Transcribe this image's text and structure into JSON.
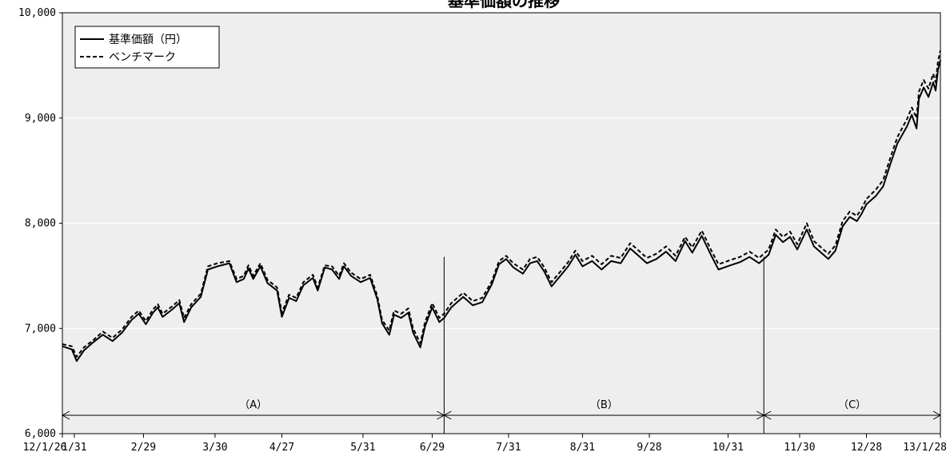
{
  "chart_data": {
    "type": "line",
    "title": "基準価額の推移",
    "xlabel": "",
    "ylabel": "",
    "ylim": [
      6000,
      10000
    ],
    "yticks": [
      6000,
      7000,
      8000,
      9000,
      10000
    ],
    "ytick_labels": [
      "6,000",
      "7,000",
      "8,000",
      "9,000",
      "10,000"
    ],
    "grid": true,
    "legend_placement": "top-left",
    "xlim": [
      "2012-01-26",
      "2013-01-28"
    ],
    "xticks": [
      {
        "date": "2012-01-26",
        "label": "12/1/26"
      },
      {
        "date": "2012-01-31",
        "label": "1/31"
      },
      {
        "date": "2012-02-29",
        "label": "2/29"
      },
      {
        "date": "2012-03-30",
        "label": "3/30"
      },
      {
        "date": "2012-04-27",
        "label": "4/27"
      },
      {
        "date": "2012-05-31",
        "label": "5/31"
      },
      {
        "date": "2012-06-29",
        "label": "6/29"
      },
      {
        "date": "2012-07-31",
        "label": "7/31"
      },
      {
        "date": "2012-08-31",
        "label": "8/31"
      },
      {
        "date": "2012-09-28",
        "label": "9/28"
      },
      {
        "date": "2012-10-31",
        "label": "10/31"
      },
      {
        "date": "2012-11-30",
        "label": "11/30"
      },
      {
        "date": "2012-12-28",
        "label": "12/28"
      },
      {
        "date": "2013-01-28",
        "label": "13/1/28"
      }
    ],
    "periods": [
      {
        "label": "（A）",
        "start": "2012-01-26",
        "end": "2012-07-04"
      },
      {
        "label": "（B）",
        "start": "2012-07-04",
        "end": "2012-11-15"
      },
      {
        "label": "（C）",
        "start": "2012-11-15",
        "end": "2013-01-28"
      }
    ],
    "series": [
      {
        "name": "基準価額（円）",
        "style": "solid",
        "color": "#000000",
        "points": [
          [
            "2012-01-26",
            6830
          ],
          [
            "2012-01-30",
            6800
          ],
          [
            "2012-02-01",
            6690
          ],
          [
            "2012-02-04",
            6790
          ],
          [
            "2012-02-08",
            6870
          ],
          [
            "2012-02-12",
            6940
          ],
          [
            "2012-02-16",
            6880
          ],
          [
            "2012-02-20",
            6960
          ],
          [
            "2012-02-24",
            7080
          ],
          [
            "2012-02-27",
            7140
          ],
          [
            "2012-03-01",
            7040
          ],
          [
            "2012-03-04",
            7150
          ],
          [
            "2012-03-06",
            7200
          ],
          [
            "2012-03-08",
            7110
          ],
          [
            "2012-03-12",
            7180
          ],
          [
            "2012-03-15",
            7240
          ],
          [
            "2012-03-17",
            7060
          ],
          [
            "2012-03-20",
            7200
          ],
          [
            "2012-03-24",
            7300
          ],
          [
            "2012-03-27",
            7560
          ],
          [
            "2012-03-31",
            7590
          ],
          [
            "2012-04-05",
            7620
          ],
          [
            "2012-04-08",
            7440
          ],
          [
            "2012-04-11",
            7470
          ],
          [
            "2012-04-13",
            7570
          ],
          [
            "2012-04-15",
            7470
          ],
          [
            "2012-04-18",
            7590
          ],
          [
            "2012-04-21",
            7430
          ],
          [
            "2012-04-25",
            7360
          ],
          [
            "2012-04-27",
            7110
          ],
          [
            "2012-04-30",
            7290
          ],
          [
            "2012-05-03",
            7260
          ],
          [
            "2012-05-06",
            7410
          ],
          [
            "2012-05-10",
            7480
          ],
          [
            "2012-05-12",
            7360
          ],
          [
            "2012-05-15",
            7580
          ],
          [
            "2012-05-18",
            7560
          ],
          [
            "2012-05-21",
            7470
          ],
          [
            "2012-05-23",
            7590
          ],
          [
            "2012-05-26",
            7500
          ],
          [
            "2012-05-30",
            7440
          ],
          [
            "2012-06-03",
            7480
          ],
          [
            "2012-06-06",
            7280
          ],
          [
            "2012-06-08",
            7050
          ],
          [
            "2012-06-11",
            6940
          ],
          [
            "2012-06-13",
            7130
          ],
          [
            "2012-06-16",
            7100
          ],
          [
            "2012-06-19",
            7150
          ],
          [
            "2012-06-21",
            6960
          ],
          [
            "2012-06-24",
            6820
          ],
          [
            "2012-06-26",
            7020
          ],
          [
            "2012-06-29",
            7200
          ],
          [
            "2012-07-02",
            7060
          ],
          [
            "2012-07-04",
            7100
          ],
          [
            "2012-07-07",
            7200
          ],
          [
            "2012-07-12",
            7300
          ],
          [
            "2012-07-16",
            7220
          ],
          [
            "2012-07-20",
            7250
          ],
          [
            "2012-07-24",
            7420
          ],
          [
            "2012-07-27",
            7610
          ],
          [
            "2012-07-30",
            7660
          ],
          [
            "2012-08-02",
            7580
          ],
          [
            "2012-08-06",
            7520
          ],
          [
            "2012-08-09",
            7620
          ],
          [
            "2012-08-12",
            7640
          ],
          [
            "2012-08-15",
            7540
          ],
          [
            "2012-08-18",
            7400
          ],
          [
            "2012-08-21",
            7480
          ],
          [
            "2012-08-25",
            7590
          ],
          [
            "2012-08-28",
            7700
          ],
          [
            "2012-08-31",
            7590
          ],
          [
            "2012-09-04",
            7640
          ],
          [
            "2012-09-08",
            7560
          ],
          [
            "2012-09-12",
            7640
          ],
          [
            "2012-09-16",
            7620
          ],
          [
            "2012-09-20",
            7760
          ],
          [
            "2012-09-23",
            7700
          ],
          [
            "2012-09-27",
            7620
          ],
          [
            "2012-10-01",
            7660
          ],
          [
            "2012-10-05",
            7730
          ],
          [
            "2012-10-09",
            7640
          ],
          [
            "2012-10-13",
            7830
          ],
          [
            "2012-10-16",
            7720
          ],
          [
            "2012-10-20",
            7880
          ],
          [
            "2012-10-24",
            7690
          ],
          [
            "2012-10-27",
            7560
          ],
          [
            "2012-11-01",
            7600
          ],
          [
            "2012-11-05",
            7630
          ],
          [
            "2012-11-09",
            7680
          ],
          [
            "2012-11-13",
            7620
          ],
          [
            "2012-11-17",
            7700
          ],
          [
            "2012-11-20",
            7890
          ],
          [
            "2012-11-23",
            7820
          ],
          [
            "2012-11-26",
            7870
          ],
          [
            "2012-11-29",
            7750
          ],
          [
            "2012-12-03",
            7940
          ],
          [
            "2012-12-06",
            7780
          ],
          [
            "2012-12-09",
            7720
          ],
          [
            "2012-12-12",
            7660
          ],
          [
            "2012-12-15",
            7740
          ],
          [
            "2012-12-18",
            7970
          ],
          [
            "2012-12-21",
            8060
          ],
          [
            "2012-12-24",
            8020
          ],
          [
            "2012-12-26",
            8090
          ],
          [
            "2012-12-28",
            8180
          ],
          [
            "2013-01-01",
            8260
          ],
          [
            "2013-01-04",
            8350
          ],
          [
            "2013-01-07",
            8560
          ],
          [
            "2013-01-10",
            8760
          ],
          [
            "2013-01-14",
            8920
          ],
          [
            "2013-01-16",
            9030
          ],
          [
            "2013-01-18",
            8900
          ],
          [
            "2013-01-19",
            9180
          ],
          [
            "2013-01-21",
            9290
          ],
          [
            "2013-01-23",
            9200
          ],
          [
            "2013-01-25",
            9340
          ],
          [
            "2013-01-26",
            9260
          ],
          [
            "2013-01-27",
            9460
          ],
          [
            "2013-01-28",
            9550
          ]
        ]
      },
      {
        "name": "ベンチマーク",
        "style": "dashed",
        "color": "#000000",
        "points": [
          [
            "2012-01-26",
            6850
          ],
          [
            "2012-01-30",
            6830
          ],
          [
            "2012-02-01",
            6730
          ],
          [
            "2012-02-04",
            6820
          ],
          [
            "2012-02-08",
            6890
          ],
          [
            "2012-02-12",
            6970
          ],
          [
            "2012-02-16",
            6910
          ],
          [
            "2012-02-20",
            6990
          ],
          [
            "2012-02-24",
            7110
          ],
          [
            "2012-02-27",
            7170
          ],
          [
            "2012-03-01",
            7070
          ],
          [
            "2012-03-04",
            7180
          ],
          [
            "2012-03-06",
            7230
          ],
          [
            "2012-03-08",
            7140
          ],
          [
            "2012-03-12",
            7210
          ],
          [
            "2012-03-15",
            7270
          ],
          [
            "2012-03-17",
            7100
          ],
          [
            "2012-03-20",
            7230
          ],
          [
            "2012-03-24",
            7330
          ],
          [
            "2012-03-27",
            7590
          ],
          [
            "2012-03-31",
            7620
          ],
          [
            "2012-04-05",
            7640
          ],
          [
            "2012-04-08",
            7470
          ],
          [
            "2012-04-11",
            7500
          ],
          [
            "2012-04-13",
            7600
          ],
          [
            "2012-04-15",
            7500
          ],
          [
            "2012-04-18",
            7620
          ],
          [
            "2012-04-21",
            7460
          ],
          [
            "2012-04-25",
            7390
          ],
          [
            "2012-04-27",
            7150
          ],
          [
            "2012-04-30",
            7320
          ],
          [
            "2012-05-03",
            7290
          ],
          [
            "2012-05-06",
            7440
          ],
          [
            "2012-05-10",
            7510
          ],
          [
            "2012-05-12",
            7390
          ],
          [
            "2012-05-15",
            7600
          ],
          [
            "2012-05-18",
            7590
          ],
          [
            "2012-05-21",
            7500
          ],
          [
            "2012-05-23",
            7620
          ],
          [
            "2012-05-26",
            7530
          ],
          [
            "2012-05-30",
            7470
          ],
          [
            "2012-06-03",
            7510
          ],
          [
            "2012-06-06",
            7310
          ],
          [
            "2012-06-08",
            7080
          ],
          [
            "2012-06-11",
            6980
          ],
          [
            "2012-06-13",
            7170
          ],
          [
            "2012-06-16",
            7140
          ],
          [
            "2012-06-19",
            7190
          ],
          [
            "2012-06-21",
            7000
          ],
          [
            "2012-06-24",
            6860
          ],
          [
            "2012-06-26",
            7060
          ],
          [
            "2012-06-29",
            7240
          ],
          [
            "2012-07-02",
            7100
          ],
          [
            "2012-07-04",
            7140
          ],
          [
            "2012-07-07",
            7240
          ],
          [
            "2012-07-12",
            7340
          ],
          [
            "2012-07-16",
            7260
          ],
          [
            "2012-07-20",
            7290
          ],
          [
            "2012-07-24",
            7450
          ],
          [
            "2012-07-27",
            7640
          ],
          [
            "2012-07-30",
            7690
          ],
          [
            "2012-08-02",
            7620
          ],
          [
            "2012-08-06",
            7560
          ],
          [
            "2012-08-09",
            7660
          ],
          [
            "2012-08-12",
            7680
          ],
          [
            "2012-08-15",
            7580
          ],
          [
            "2012-08-18",
            7440
          ],
          [
            "2012-08-21",
            7520
          ],
          [
            "2012-08-25",
            7630
          ],
          [
            "2012-08-28",
            7740
          ],
          [
            "2012-08-31",
            7640
          ],
          [
            "2012-09-04",
            7690
          ],
          [
            "2012-09-08",
            7610
          ],
          [
            "2012-09-12",
            7690
          ],
          [
            "2012-09-16",
            7670
          ],
          [
            "2012-09-20",
            7810
          ],
          [
            "2012-09-23",
            7750
          ],
          [
            "2012-09-27",
            7670
          ],
          [
            "2012-10-01",
            7710
          ],
          [
            "2012-10-05",
            7780
          ],
          [
            "2012-10-09",
            7690
          ],
          [
            "2012-10-13",
            7870
          ],
          [
            "2012-10-16",
            7770
          ],
          [
            "2012-10-20",
            7930
          ],
          [
            "2012-10-24",
            7740
          ],
          [
            "2012-10-27",
            7610
          ],
          [
            "2012-11-01",
            7650
          ],
          [
            "2012-11-05",
            7680
          ],
          [
            "2012-11-09",
            7730
          ],
          [
            "2012-11-13",
            7670
          ],
          [
            "2012-11-17",
            7750
          ],
          [
            "2012-11-20",
            7940
          ],
          [
            "2012-11-23",
            7870
          ],
          [
            "2012-11-26",
            7920
          ],
          [
            "2012-11-29",
            7800
          ],
          [
            "2012-12-03",
            8000
          ],
          [
            "2012-12-06",
            7830
          ],
          [
            "2012-12-09",
            7770
          ],
          [
            "2012-12-12",
            7710
          ],
          [
            "2012-12-15",
            7790
          ],
          [
            "2012-12-18",
            8020
          ],
          [
            "2012-12-21",
            8110
          ],
          [
            "2012-12-24",
            8070
          ],
          [
            "2012-12-26",
            8140
          ],
          [
            "2012-12-28",
            8230
          ],
          [
            "2013-01-01",
            8320
          ],
          [
            "2013-01-04",
            8410
          ],
          [
            "2013-01-07",
            8620
          ],
          [
            "2013-01-10",
            8820
          ],
          [
            "2013-01-14",
            8990
          ],
          [
            "2013-01-16",
            9100
          ],
          [
            "2013-01-18",
            9000
          ],
          [
            "2013-01-19",
            9250
          ],
          [
            "2013-01-21",
            9360
          ],
          [
            "2013-01-23",
            9280
          ],
          [
            "2013-01-25",
            9420
          ],
          [
            "2013-01-26",
            9340
          ],
          [
            "2013-01-27",
            9540
          ],
          [
            "2013-01-28",
            9640
          ]
        ]
      }
    ]
  },
  "colors": {
    "plot_background": "#eeeeee",
    "grid": "#ffffff",
    "line": "#000000"
  }
}
